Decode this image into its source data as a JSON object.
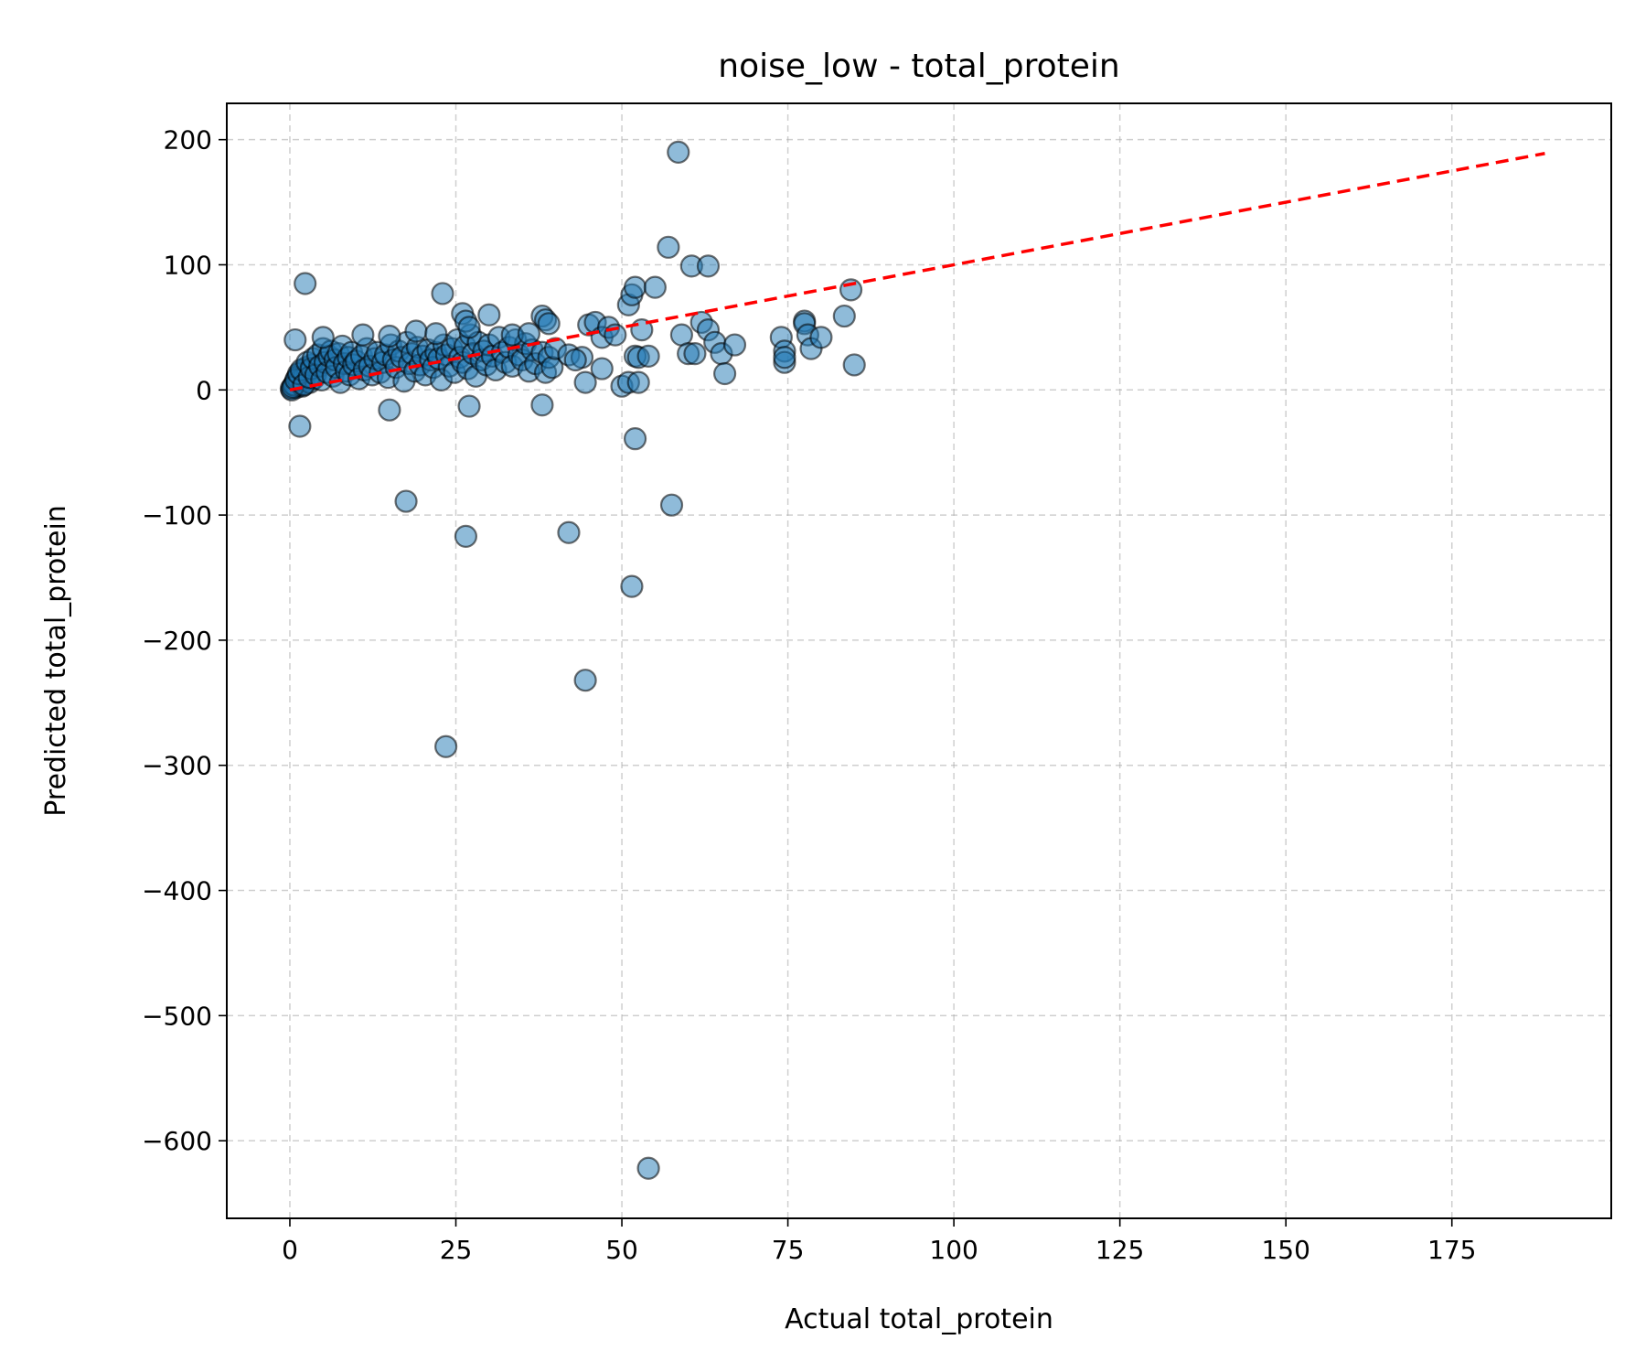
{
  "chart_data": {
    "type": "scatter",
    "title": "noise_low - total_protein",
    "xlabel": "Actual total_protein",
    "ylabel": "Predicted total_protein",
    "xlim": [
      -9.5,
      199
    ],
    "ylim": [
      -662,
      229
    ],
    "xticks": [
      0,
      25,
      50,
      75,
      100,
      125,
      150,
      175
    ],
    "yticks": [
      200,
      100,
      0,
      -100,
      -200,
      -300,
      -400,
      -500,
      -600
    ],
    "xtick_labels": [
      "0",
      "25",
      "50",
      "75",
      "100",
      "125",
      "150",
      "175"
    ],
    "ytick_labels": [
      "200",
      "100",
      "0",
      "−100",
      "−200",
      "−300",
      "−400",
      "−500",
      "−600"
    ],
    "grid": true,
    "point_color": "#1f77b4",
    "point_alpha": 0.5,
    "point_edge_color": "#000000",
    "identity_line": {
      "x": [
        0,
        189
      ],
      "y": [
        0,
        189
      ],
      "color": "#ff0000",
      "style": "dashed"
    },
    "points": [
      [
        0.2,
        1
      ],
      [
        0.5,
        3
      ],
      [
        0.8,
        6
      ],
      [
        1.0,
        2
      ],
      [
        1.2,
        9
      ],
      [
        1.5,
        12
      ],
      [
        1.8,
        5
      ],
      [
        2.0,
        15
      ],
      [
        2.3,
        8
      ],
      [
        2.5,
        18
      ],
      [
        0.3,
        0
      ],
      [
        0.6,
        4
      ],
      [
        1.1,
        10
      ],
      [
        1.4,
        7
      ],
      [
        1.9,
        3
      ],
      [
        2.2,
        11
      ],
      [
        2.7,
        14
      ],
      [
        3.0,
        6
      ],
      [
        3.3,
        20
      ],
      [
        3.6,
        9
      ],
      [
        0.4,
        2
      ],
      [
        0.9,
        8
      ],
      [
        1.3,
        13
      ],
      [
        1.7,
        16
      ],
      [
        2.1,
        4
      ],
      [
        2.6,
        22
      ],
      [
        2.9,
        10
      ],
      [
        3.2,
        17
      ],
      [
        3.5,
        25
      ],
      [
        3.9,
        12
      ],
      [
        4.2,
        28
      ],
      [
        4.5,
        19
      ],
      [
        4.8,
        8
      ],
      [
        5.0,
        33
      ],
      [
        5.3,
        22
      ],
      [
        5.6,
        14
      ],
      [
        5.9,
        27
      ],
      [
        6.2,
        31
      ],
      [
        6.5,
        11
      ],
      [
        6.8,
        24
      ],
      [
        7.0,
        18
      ],
      [
        7.3,
        29
      ],
      [
        7.6,
        6
      ],
      [
        7.9,
        35
      ],
      [
        8.2,
        21
      ],
      [
        8.5,
        15
      ],
      [
        8.8,
        26
      ],
      [
        9.0,
        12
      ],
      [
        9.3,
        30
      ],
      [
        9.6,
        20
      ],
      [
        10.0,
        23
      ],
      [
        10.4,
        9
      ],
      [
        10.8,
        27
      ],
      [
        11.2,
        16
      ],
      [
        11.6,
        33
      ],
      [
        12.0,
        19
      ],
      [
        12.4,
        12
      ],
      [
        12.8,
        25
      ],
      [
        13.2,
        30
      ],
      [
        13.6,
        14
      ],
      [
        14.0,
        22
      ],
      [
        14.4,
        28
      ],
      [
        14.8,
        10
      ],
      [
        15.2,
        36
      ],
      [
        15.6,
        24
      ],
      [
        16.0,
        18
      ],
      [
        16.4,
        31
      ],
      [
        16.8,
        26
      ],
      [
        17.2,
        7
      ],
      [
        17.6,
        38
      ],
      [
        18.0,
        21
      ],
      [
        18.4,
        29
      ],
      [
        18.8,
        15
      ],
      [
        19.2,
        34
      ],
      [
        19.6,
        20
      ],
      [
        20.0,
        27
      ],
      [
        20.4,
        12
      ],
      [
        20.8,
        32
      ],
      [
        21.2,
        24
      ],
      [
        21.6,
        18
      ],
      [
        22.0,
        30
      ],
      [
        22.4,
        25
      ],
      [
        22.8,
        8
      ],
      [
        23.2,
        36
      ],
      [
        23.6,
        28
      ],
      [
        24.0,
        19
      ],
      [
        24.4,
        33
      ],
      [
        24.8,
        14
      ],
      [
        25.2,
        40
      ],
      [
        25.6,
        26
      ],
      [
        26.0,
        22
      ],
      [
        26.4,
        35
      ],
      [
        26.8,
        17
      ],
      [
        27.2,
        44
      ],
      [
        27.6,
        29
      ],
      [
        28.0,
        11
      ],
      [
        28.4,
        38
      ],
      [
        28.8,
        24
      ],
      [
        29.2,
        31
      ],
      [
        29.6,
        20
      ],
      [
        30.0,
        36
      ],
      [
        30.5,
        27
      ],
      [
        31.0,
        16
      ],
      [
        31.5,
        42
      ],
      [
        32.0,
        30
      ],
      [
        32.5,
        22
      ],
      [
        33.0,
        34
      ],
      [
        33.5,
        19
      ],
      [
        34.0,
        40
      ],
      [
        34.5,
        28
      ],
      [
        35.0,
        24
      ],
      [
        35.5,
        37
      ],
      [
        36.0,
        15
      ],
      [
        36.5,
        32
      ],
      [
        37.0,
        21
      ],
      [
        38.0,
        30
      ],
      [
        38.5,
        14
      ],
      [
        39.0,
        26
      ],
      [
        39.5,
        18
      ],
      [
        40.0,
        33
      ],
      [
        0.8,
        40
      ],
      [
        1.5,
        -29
      ],
      [
        2.3,
        85
      ],
      [
        5.0,
        42
      ],
      [
        11.0,
        44
      ],
      [
        15.0,
        43
      ],
      [
        19.0,
        47
      ],
      [
        22.0,
        45
      ],
      [
        23.0,
        77
      ],
      [
        26.0,
        61
      ],
      [
        26.5,
        55
      ],
      [
        27.0,
        50
      ],
      [
        30.0,
        60
      ],
      [
        33.5,
        44
      ],
      [
        36.0,
        45
      ],
      [
        38.0,
        59
      ],
      [
        38.5,
        56
      ],
      [
        39.0,
        53
      ],
      [
        45.0,
        52
      ],
      [
        46.0,
        54
      ],
      [
        47.0,
        42
      ],
      [
        48.0,
        50
      ],
      [
        49.0,
        44
      ],
      [
        42.0,
        28
      ],
      [
        44.0,
        26
      ],
      [
        43.0,
        24
      ],
      [
        44.5,
        6
      ],
      [
        47.0,
        17
      ],
      [
        50.0,
        3
      ],
      [
        51.0,
        6
      ],
      [
        51.0,
        68
      ],
      [
        51.5,
        76
      ],
      [
        52.0,
        82
      ],
      [
        52.0,
        27
      ],
      [
        52.5,
        26
      ],
      [
        52.5,
        6
      ],
      [
        53.0,
        48
      ],
      [
        54.0,
        27
      ],
      [
        55.0,
        82
      ],
      [
        57.0,
        114
      ],
      [
        58.5,
        190
      ],
      [
        59.0,
        44
      ],
      [
        60.0,
        29
      ],
      [
        60.5,
        99
      ],
      [
        61.0,
        29
      ],
      [
        62.0,
        54
      ],
      [
        63.0,
        99
      ],
      [
        63.0,
        48
      ],
      [
        64.0,
        38
      ],
      [
        65.0,
        29
      ],
      [
        65.5,
        13
      ],
      [
        67.0,
        36
      ],
      [
        74.0,
        42
      ],
      [
        74.5,
        31
      ],
      [
        74.5,
        22
      ],
      [
        74.5,
        26
      ],
      [
        77.5,
        55
      ],
      [
        77.5,
        53
      ],
      [
        78.0,
        44
      ],
      [
        78.5,
        33
      ],
      [
        80.0,
        42
      ],
      [
        83.5,
        59
      ],
      [
        84.5,
        80
      ],
      [
        85.0,
        20
      ],
      [
        15.0,
        -16
      ],
      [
        17.5,
        -89
      ],
      [
        26.5,
        -117
      ],
      [
        27.0,
        -13
      ],
      [
        38.0,
        -12
      ],
      [
        42.0,
        -114
      ],
      [
        44.5,
        -232
      ],
      [
        23.5,
        -285
      ],
      [
        51.5,
        -157
      ],
      [
        52.0,
        -39
      ],
      [
        57.5,
        -92
      ],
      [
        54.0,
        -622
      ]
    ]
  }
}
